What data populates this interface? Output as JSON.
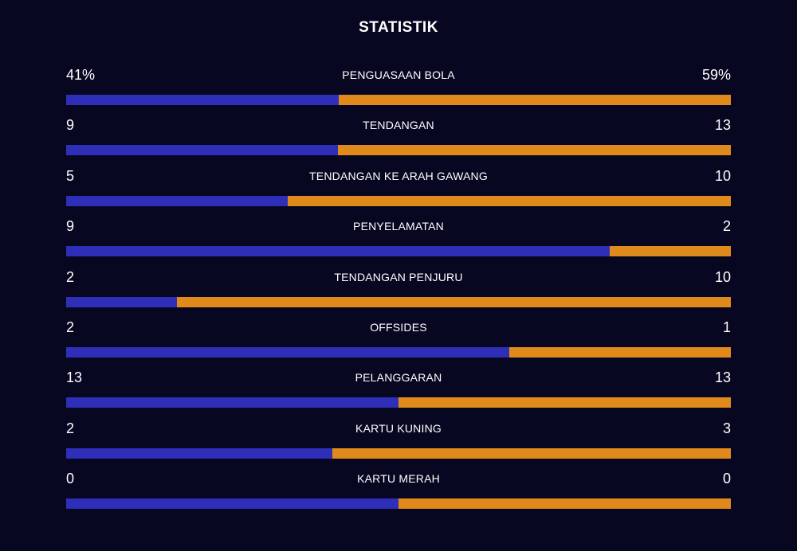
{
  "title": "STATISTIK",
  "colors": {
    "background": "#070721",
    "home": "#2e2eb8",
    "away": "#e08a1c",
    "text": "#ffffff"
  },
  "stats": [
    {
      "label": "PENGUASAAN BOLA",
      "home": "41%",
      "away": "59%",
      "home_share": 0.41
    },
    {
      "label": "TENDANGAN",
      "home": "9",
      "away": "13",
      "home_share": 0.409
    },
    {
      "label": "TENDANGAN KE ARAH GAWANG",
      "home": "5",
      "away": "10",
      "home_share": 0.333
    },
    {
      "label": "PENYELAMATAN",
      "home": "9",
      "away": "2",
      "home_share": 0.818
    },
    {
      "label": "TENDANGAN PENJURU",
      "home": "2",
      "away": "10",
      "home_share": 0.167
    },
    {
      "label": "OFFSIDES",
      "home": "2",
      "away": "1",
      "home_share": 0.667
    },
    {
      "label": "PELANGGARAN",
      "home": "13",
      "away": "13",
      "home_share": 0.5
    },
    {
      "label": "KARTU KUNING",
      "home": "2",
      "away": "3",
      "home_share": 0.4
    },
    {
      "label": "KARTU MERAH",
      "home": "0",
      "away": "0",
      "home_share": 0.5
    }
  ]
}
